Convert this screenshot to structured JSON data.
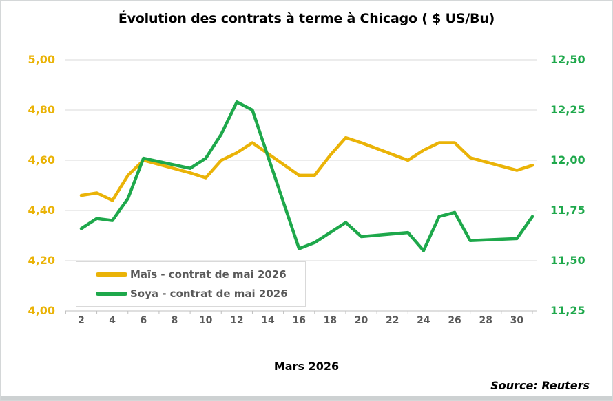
{
  "title": "Évolution des contrats à terme à Chicago ( $ US/Bu)",
  "xlabel": "Mars 2026",
  "source": "Source: Reuters",
  "legend": {
    "items": [
      {
        "label": "Maïs - contrat de mai 2026",
        "color": "#EAB307"
      },
      {
        "label": "Soya - contrat de mai 2026",
        "color": "#1EA84B"
      }
    ]
  },
  "chart_data": {
    "type": "line",
    "title": "Évolution des contrats à terme à Chicago ( $ US/Bu)",
    "xlabel": "Mars 2026",
    "x": [
      2,
      3,
      4,
      5,
      6,
      9,
      10,
      11,
      12,
      13,
      16,
      17,
      18,
      19,
      20,
      23,
      24,
      25,
      26,
      27,
      30,
      31
    ],
    "series": [
      {
        "name": "Maïs - contrat de mai 2026",
        "axis": "left",
        "color": "#EAB307",
        "values": [
          4.46,
          4.47,
          4.44,
          4.54,
          4.6,
          4.55,
          4.53,
          4.6,
          4.63,
          4.67,
          4.54,
          4.54,
          4.62,
          4.69,
          4.67,
          4.6,
          4.64,
          4.67,
          4.67,
          4.61,
          4.56,
          4.58
        ]
      },
      {
        "name": "Soya - contrat de mai 2026",
        "axis": "right",
        "color": "#1EA84B",
        "values": [
          11.66,
          11.71,
          11.7,
          11.81,
          12.01,
          11.96,
          12.01,
          12.13,
          12.29,
          12.25,
          11.56,
          11.59,
          11.64,
          11.69,
          11.62,
          11.64,
          11.55,
          11.72,
          11.74,
          11.6,
          11.61,
          11.72
        ]
      }
    ],
    "left_axis": {
      "min": 4.0,
      "max": 5.0,
      "tick_labels": [
        "5,00",
        "4,80",
        "4,60",
        "4,40",
        "4,20",
        "4,00"
      ],
      "color": "#EAB307"
    },
    "right_axis": {
      "min": 11.25,
      "max": 12.5,
      "tick_labels": [
        "12,50",
        "12,25",
        "12,00",
        "11,75",
        "11,50",
        "11,25"
      ],
      "color": "#1EA84B"
    },
    "x_axis": {
      "tick_labels": [
        "2",
        "4",
        "6",
        "8",
        "10",
        "12",
        "14",
        "16",
        "18",
        "20",
        "22",
        "24",
        "26",
        "28",
        "30"
      ],
      "tick_label_color": "#595959"
    },
    "grid": {
      "show": true,
      "color": "#d9d9d9",
      "axis_line_color": "#bfbfbf"
    },
    "legend_position": "bottom-left-inside"
  }
}
